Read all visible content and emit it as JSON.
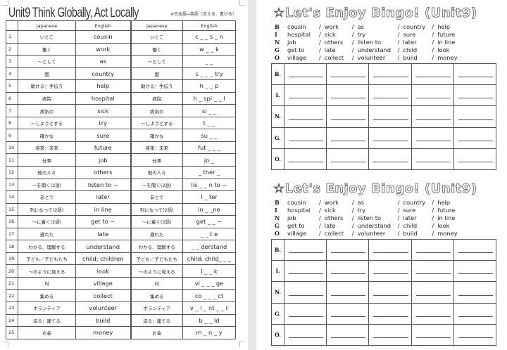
{
  "left_page": {
    "title": "Unit9 Think Globally, Act Locally",
    "note": "※日本語→英語（言える、書ける）",
    "headers": [
      "",
      "Japanese",
      "English",
      "Japanese",
      "English"
    ],
    "rows": [
      [
        "1",
        "いとこ",
        "cousin",
        "いとこ",
        "c _ _ s _ n"
      ],
      [
        "2",
        "働く",
        "work",
        "働く",
        "w _ _ k"
      ],
      [
        "3",
        "～として",
        "as",
        "～として",
        "_ _"
      ],
      [
        "4",
        "国",
        "country",
        "国",
        "c _ _ _ try"
      ],
      [
        "5",
        "助ける：手伝う",
        "help",
        "助ける：手伝う",
        "h _ _ p"
      ],
      [
        "6",
        "病院",
        "hospital",
        "病院",
        "h _ spi _ _ l"
      ],
      [
        "7",
        "病気の",
        "sick",
        "病気の",
        "si _ _"
      ],
      [
        "8",
        "～しようとする",
        "try",
        "～しようとする",
        "t _ _"
      ],
      [
        "9",
        "確かな",
        "sure",
        "確かな",
        "su _ _"
      ],
      [
        "10",
        "将来：未来",
        "future",
        "将来：未来",
        "fut _ _ _"
      ],
      [
        "11",
        "仕事",
        "job",
        "仕事",
        "jo _"
      ],
      [
        "12",
        "他の人々",
        "others",
        "他の人々",
        "_ ther _"
      ],
      [
        "13",
        "～を聞く(2語)",
        "listen to ~",
        "～を聞く(2語)",
        "lis _ _ n to ~"
      ],
      [
        "14",
        "あとで",
        "later",
        "あとで",
        "l _ ter"
      ],
      [
        "15",
        "列になって(2語)",
        "in line",
        "列になって(2語)",
        "in _ _ne"
      ],
      [
        "16",
        "～に着く(2語)",
        "get to ~",
        "～に着く(2語)",
        "get _ _ ~"
      ],
      [
        "17",
        "遅れた",
        "late",
        "遅れた",
        "_ _ t e"
      ],
      [
        "18",
        "わかる、理解する",
        "understand",
        "わかる、理解する",
        "_ _ derstand"
      ],
      [
        "19",
        "子ども／子どもたち",
        "child; children",
        "子ども／子どもたち",
        "child; child_ _ _"
      ],
      [
        "20",
        "～のように見える",
        "look",
        "～のように見える",
        "l _ _ k"
      ],
      [
        "21",
        "村",
        "village",
        "村",
        "vi _ _ _ ge"
      ],
      [
        "22",
        "集める",
        "collect",
        "集める",
        "co _ _ _ ct"
      ],
      [
        "23",
        "ボランティア",
        "volunteer",
        "ボランティア",
        "v _ l _ nt _ _ r"
      ],
      [
        "24",
        "造る：建てる",
        "build",
        "造る：建てる",
        "b _ _ ld"
      ],
      [
        "25",
        "お金",
        "money",
        "お金",
        "m _ n _ y"
      ]
    ]
  },
  "bingo": {
    "title": "☆Let's Enjoy Bingo! (Unit9)",
    "lines": [
      {
        "letter": "B",
        "words": [
          "cousin",
          "work",
          "as",
          "country",
          "help"
        ]
      },
      {
        "letter": "I",
        "words": [
          "hospital",
          "sick",
          "try",
          "sure",
          "future"
        ]
      },
      {
        "letter": "N",
        "words": [
          "job",
          "others",
          "listen to",
          "later",
          "in line"
        ]
      },
      {
        "letter": "G",
        "words": [
          "get to",
          "late",
          "understand",
          "child",
          "look"
        ]
      },
      {
        "letter": "O",
        "words": [
          "village",
          "collect",
          "volunteer",
          "build",
          "money"
        ]
      }
    ],
    "grid_labels": [
      "B.",
      "I.",
      "N.",
      "G.",
      "O."
    ]
  }
}
